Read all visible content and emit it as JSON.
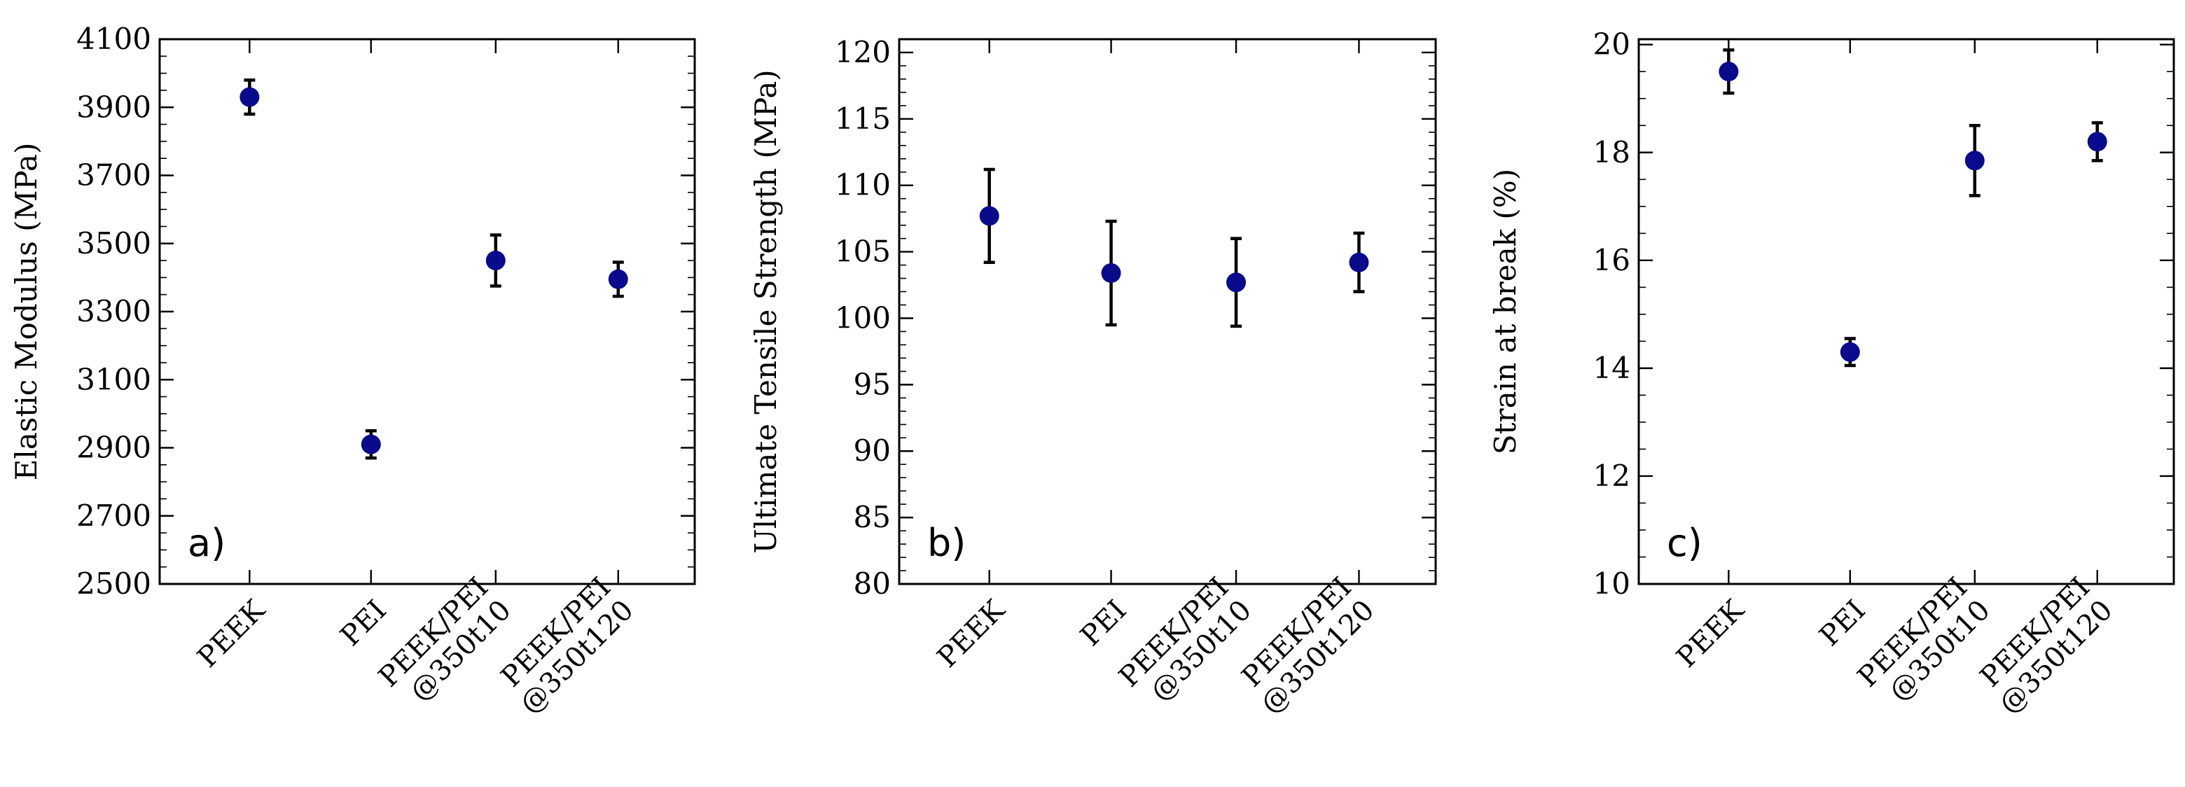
{
  "colors": {
    "marker": "#0a0a8c",
    "axis": "#000000",
    "errorbar": "#000000"
  },
  "chart_data": [
    {
      "type": "scatter",
      "panel_label": "a)",
      "ylabel": "Elastic Modulus (MPa)",
      "categories": [
        [
          "PEEK"
        ],
        [
          "PEI"
        ],
        [
          "PEEK/PEI",
          "@350t10"
        ],
        [
          "PEEK/PEI",
          "@350t120"
        ]
      ],
      "values": [
        3930,
        2910,
        3450,
        3395
      ],
      "errors": [
        50,
        40,
        75,
        50
      ],
      "ylim": [
        2500,
        4100
      ],
      "yticks": [
        2500,
        2700,
        2900,
        3100,
        3300,
        3500,
        3700,
        3900,
        4100
      ],
      "yminor_step": 50,
      "grid": false
    },
    {
      "type": "scatter",
      "panel_label": "b)",
      "ylabel": "Ultimate Tensile Strength (MPa)",
      "categories": [
        [
          "PEEK"
        ],
        [
          "PEI"
        ],
        [
          "PEEK/PEI",
          "@350t10"
        ],
        [
          "PEEK/PEI",
          "@350t120"
        ]
      ],
      "values": [
        107.7,
        103.4,
        102.7,
        104.2
      ],
      "errors": [
        3.5,
        3.9,
        3.3,
        2.2
      ],
      "ylim": [
        80,
        121
      ],
      "yticks": [
        80,
        85,
        90,
        95,
        100,
        105,
        110,
        115,
        120
      ],
      "yminor_step": 1,
      "grid": false
    },
    {
      "type": "scatter",
      "panel_label": "c)",
      "ylabel": "Strain at break (%)",
      "categories": [
        [
          "PEEK"
        ],
        [
          "PEI"
        ],
        [
          "PEEK/PEI",
          "@350t10"
        ],
        [
          "PEEK/PEI",
          "@350t120"
        ]
      ],
      "values": [
        19.5,
        14.3,
        17.85,
        18.2
      ],
      "errors": [
        0.4,
        0.25,
        0.65,
        0.35
      ],
      "ylim": [
        10,
        20.1
      ],
      "yticks": [
        10,
        12,
        14,
        16,
        18,
        20
      ],
      "yminor_step": 0.5,
      "grid": false
    }
  ]
}
